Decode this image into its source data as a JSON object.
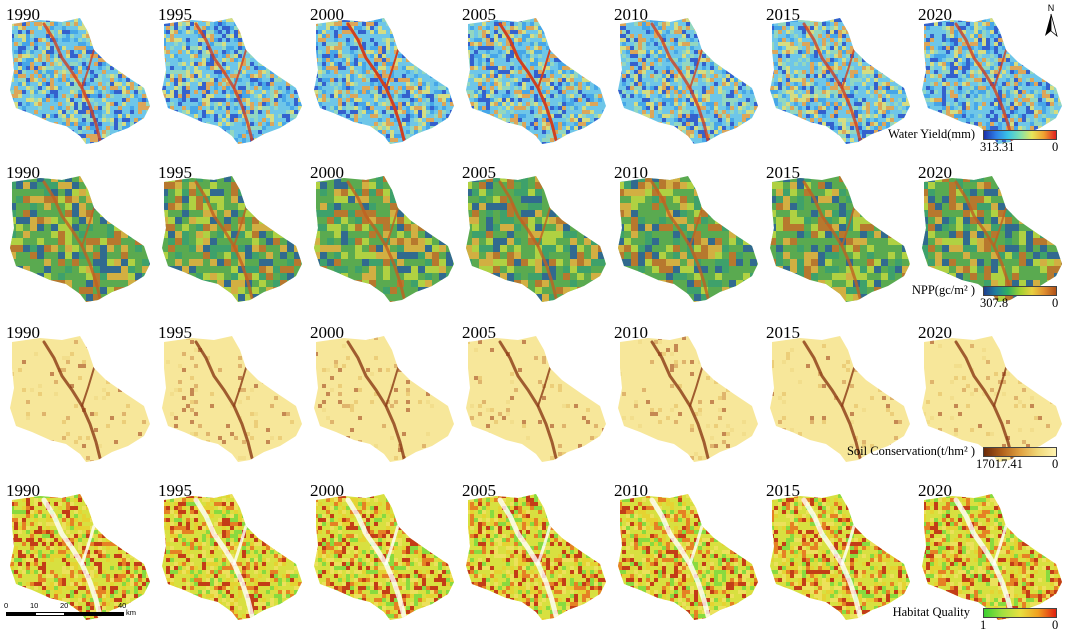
{
  "years": [
    "1990",
    "1995",
    "2000",
    "2005",
    "2010",
    "2015",
    "2020"
  ],
  "rows": [
    {
      "id": "water-yield",
      "legend_title": "Water Yield(mm)",
      "legend_low": "313.31",
      "legend_high": "0",
      "gradient": [
        "#1a2fa8",
        "#2f7fe6",
        "#39c4e6",
        "#7fe0b0",
        "#e6e65a",
        "#f0a030",
        "#e02020"
      ],
      "base_color": "#6ec6e8",
      "speckles": [
        "#2a4fc8",
        "#3fa0e8",
        "#9ad9b8",
        "#e8e070",
        "#f0a040"
      ],
      "river_color": "#d04020"
    },
    {
      "id": "npp",
      "legend_title": "NPP(gc/m² )",
      "legend_low": "307.8",
      "legend_high": "0",
      "gradient": [
        "#1f3f8f",
        "#1f7f9f",
        "#2fb060",
        "#a0d030",
        "#e8d040",
        "#e09030",
        "#b05018"
      ],
      "base_color": "#5aaa50",
      "speckles": [
        "#2a5f9a",
        "#3aa070",
        "#c0d840",
        "#e8b040",
        "#c87028"
      ],
      "river_color": "#c06020"
    },
    {
      "id": "soil-conservation",
      "legend_title": "Soil Conservation(t/hm² )",
      "legend_low": "17017.41",
      "legend_high": "0",
      "gradient": [
        "#6a2a0a",
        "#b0601a",
        "#e0a040",
        "#f0d878",
        "#fff3b0"
      ],
      "base_color": "#f7e79a",
      "speckles": [
        "#e8c870",
        "#d8a860",
        "#b87040",
        "#f0dc88"
      ],
      "river_color": "#8a3a14"
    },
    {
      "id": "habitat-quality",
      "legend_title": "Habitat Quality",
      "legend_low": "1",
      "legend_high": "0",
      "gradient": [
        "#3ad030",
        "#a0e040",
        "#e8e040",
        "#f0a020",
        "#e02010"
      ],
      "base_color": "#d8e040",
      "speckles": [
        "#7ad840",
        "#e8d030",
        "#e87020",
        "#c02010",
        "#f0e060"
      ],
      "river_color": "#ffffff"
    }
  ],
  "north_arrow": "N",
  "scale_bar": {
    "labels": [
      "0",
      "10",
      "20",
      "40"
    ],
    "unit": "km"
  }
}
